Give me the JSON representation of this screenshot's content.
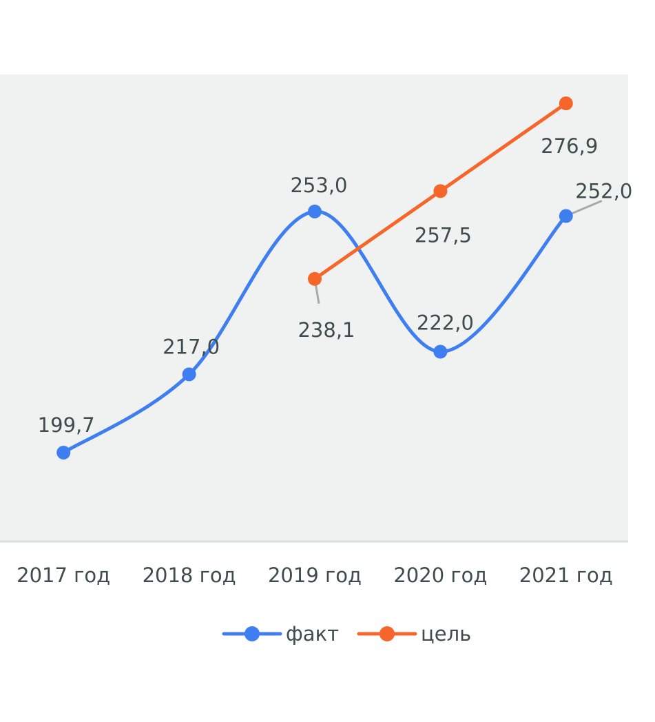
{
  "chart_data": {
    "type": "line",
    "title": "",
    "xlabel": "",
    "ylabel": "",
    "categories": [
      "2017 год",
      "2018 год",
      "2019 год",
      "2020 год",
      "2021 год"
    ],
    "ylim": [
      180.2,
      283.3
    ],
    "grid": false,
    "legend_position": "bottom",
    "series": [
      {
        "name": "факт",
        "color": "#3f7ef0",
        "smooth": true,
        "values": [
          199.7,
          217.0,
          253.0,
          222.0,
          252.0
        ],
        "labels": [
          "199,7",
          "217,0",
          "253,0",
          "222,0",
          "252,0"
        ]
      },
      {
        "name": "цель",
        "color": "#f6662a",
        "smooth": false,
        "values": [
          null,
          null,
          238.1,
          257.5,
          276.9
        ],
        "labels": [
          null,
          null,
          "238,1",
          "257,5",
          "276,9"
        ]
      }
    ]
  }
}
